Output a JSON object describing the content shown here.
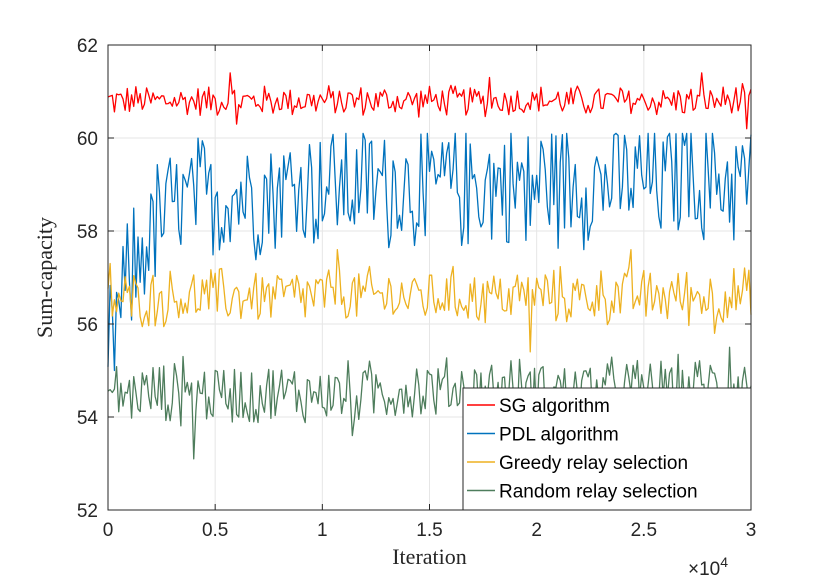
{
  "chart_data": {
    "type": "line",
    "title": "",
    "xlabel": "Iteration",
    "ylabel": "Sum-capacity",
    "x_exponent_label": "×10",
    "x_exponent_power": "4",
    "xlim": [
      0,
      3
    ],
    "ylim": [
      52,
      62
    ],
    "xticks": [
      0,
      0.5,
      1,
      1.5,
      2,
      2.5,
      3
    ],
    "xtick_labels": [
      "0",
      "0.5",
      "1",
      "1.5",
      "2",
      "2.5",
      "3"
    ],
    "yticks": [
      52,
      54,
      56,
      58,
      60,
      62
    ],
    "ytick_labels": [
      "52",
      "54",
      "56",
      "58",
      "60",
      "62"
    ],
    "grid": true,
    "legend_position": "bottom-right",
    "series": [
      {
        "name": "SG algorithm",
        "color": "#ff0000",
        "mean_values": [
          60.8,
          60.8,
          60.8,
          60.8,
          60.8,
          60.8,
          60.8
        ],
        "fluctuation_range": [
          60.2,
          61.4
        ],
        "highlights": [
          [
            0.57,
            61.4
          ],
          [
            0.6,
            60.3
          ],
          [
            1.78,
            61.3
          ],
          [
            2.77,
            61.4
          ],
          [
            2.98,
            60.2
          ]
        ]
      },
      {
        "name": "PDL algorithm",
        "color": "#0072bd",
        "mean_values": [
          55.4,
          57.0,
          58.0,
          58.5,
          58.7,
          58.8,
          58.9,
          59.0,
          59.0,
          59.05,
          59.1,
          59.1,
          59.15
        ],
        "mean_x": [
          0,
          0.1,
          0.2,
          0.3,
          0.45,
          0.6,
          0.8,
          1.0,
          1.5,
          2.0,
          2.5,
          2.75,
          3.0
        ],
        "fluctuation_range": [
          55.0,
          60.1
        ],
        "highlights": [
          [
            0.03,
            55.0
          ],
          [
            1.48,
            57.9
          ],
          [
            1.95,
            57.8
          ],
          [
            2.7,
            60.1
          ]
        ]
      },
      {
        "name": "Greedy relay selection",
        "color": "#edb120",
        "mean_values": [
          56.5,
          56.6,
          56.6,
          56.6,
          56.6,
          56.6,
          56.6
        ],
        "fluctuation_range": [
          55.4,
          57.6
        ],
        "highlights": [
          [
            0.01,
            57.3
          ],
          [
            1.07,
            57.6
          ],
          [
            1.97,
            55.4
          ],
          [
            2.44,
            57.6
          ],
          [
            2.83,
            55.8
          ]
        ]
      },
      {
        "name": "Random relay selection",
        "color": "#4e7d5c",
        "mean_values": [
          54.5,
          54.5,
          54.5,
          54.6,
          54.6,
          54.6,
          54.7
        ],
        "fluctuation_range": [
          53.1,
          55.5
        ],
        "highlights": [
          [
            0.4,
            53.1
          ],
          [
            0.35,
            55.3
          ],
          [
            1.14,
            53.6
          ],
          [
            2.9,
            55.5
          ]
        ]
      }
    ]
  }
}
